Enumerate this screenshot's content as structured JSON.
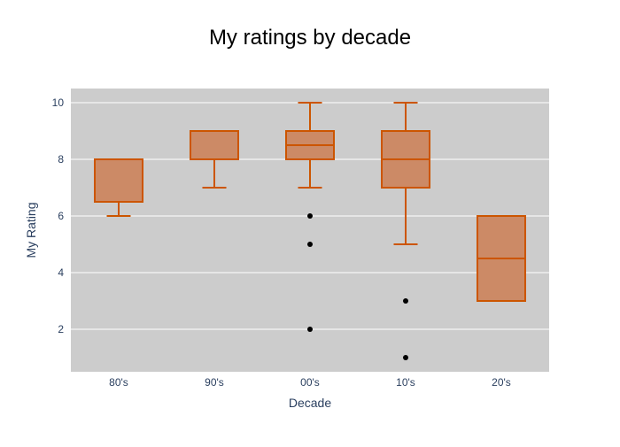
{
  "chart_data": {
    "type": "box",
    "title": "My ratings by decade",
    "xlabel": "Decade",
    "ylabel": "My Rating",
    "ylim": [
      0.5,
      10.5
    ],
    "yticks": [
      2,
      4,
      6,
      8,
      10
    ],
    "categories": [
      "80's",
      "90's",
      "00's",
      "10's",
      "20's"
    ],
    "boxes": [
      {
        "category": "80's",
        "q1": 6.5,
        "median": 8,
        "q3": 8,
        "whisker_low": 6,
        "whisker_high": 8,
        "outliers": []
      },
      {
        "category": "90's",
        "q1": 8,
        "median": 8,
        "q3": 9,
        "whisker_low": 7,
        "whisker_high": 9,
        "outliers": []
      },
      {
        "category": "00's",
        "q1": 8,
        "median": 8.5,
        "q3": 9,
        "whisker_low": 7,
        "whisker_high": 10,
        "outliers": [
          6,
          5,
          2
        ]
      },
      {
        "category": "10's",
        "q1": 7,
        "median": 8,
        "q3": 9,
        "whisker_low": 5,
        "whisker_high": 10,
        "outliers": [
          3,
          1
        ]
      },
      {
        "category": "20's",
        "q1": 3,
        "median": 4.5,
        "q3": 6,
        "whisker_low": 3,
        "whisker_high": 6,
        "outliers": []
      }
    ],
    "grid": true,
    "colors": {
      "plot_background": "#cccccc",
      "box_line": "#cc5500",
      "box_fill": "#cc8a66",
      "outlier": "#000000",
      "grid": "#ffffff",
      "axis_text": "#2a3f5f",
      "title_text": "#000000"
    }
  }
}
